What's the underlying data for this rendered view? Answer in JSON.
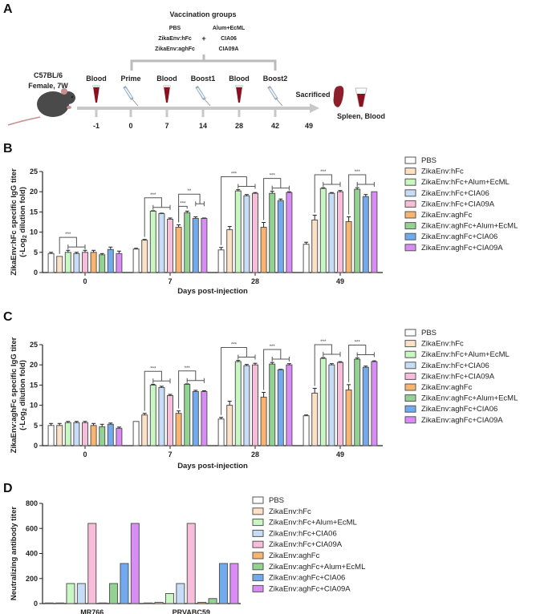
{
  "panels": {
    "a": "A",
    "b": "B",
    "c": "C",
    "d": "D"
  },
  "timeline": {
    "vaccination_title": "Vaccination groups",
    "antigens": [
      "PBS",
      "ZikaEnv:hFc",
      "ZikaEnv:aghFc"
    ],
    "plus": "+",
    "adjuvants": [
      "Alum+EcML",
      "CIA06",
      "CIA09A"
    ],
    "mouse_line1": "C57BL/6",
    "mouse_line2": "Female, 7W",
    "events": [
      {
        "label": "Blood",
        "day": "-1",
        "icon": "blood-tube-icon"
      },
      {
        "label": "Prime",
        "day": "0",
        "icon": "syringe-icon"
      },
      {
        "label": "Blood",
        "day": "7",
        "icon": "blood-tube-icon"
      },
      {
        "label": "Boost1",
        "day": "14",
        "icon": "syringe-icon"
      },
      {
        "label": "Blood",
        "day": "28",
        "icon": "blood-tube-icon"
      },
      {
        "label": "Boost2",
        "day": "42",
        "icon": "syringe-icon"
      },
      {
        "label": "Sacrificed",
        "day": "49",
        "icon": "none"
      }
    ],
    "endpoint": "Spleen, Blood"
  },
  "legend": [
    {
      "name": "PBS",
      "color": "#ffffff"
    },
    {
      "name": "ZikaEnv:hFc",
      "color": "#fde1c6"
    },
    {
      "name": "ZikaEnv:hFc+Alum+EcML",
      "color": "#c9f7c4"
    },
    {
      "name": "ZikaEnv:hFc+CIA06",
      "color": "#c7dcf6"
    },
    {
      "name": "ZikaEnv:hFc+CIA09A",
      "color": "#f9bddc"
    },
    {
      "name": "ZikaEnv:aghFc",
      "color": "#f9b46f"
    },
    {
      "name": "ZikaEnv:aghFc+Alum+EcML",
      "color": "#93d293"
    },
    {
      "name": "ZikaEnv:aghFc+CIA06",
      "color": "#72aaef"
    },
    {
      "name": "ZikaEnv:aghFc+CIA09A",
      "color": "#d98bf6"
    }
  ],
  "chart_data": [
    {
      "id": "B",
      "type": "bar",
      "ylabel_line1": "ZikaEnv:hFc specific IgG titer",
      "ylabel_line2_pre": "(-Log",
      "ylabel_line2_sub": "2",
      "ylabel_line2_post": " dilution fold)",
      "xlabel": "Days post-injection",
      "ylim": [
        0,
        25
      ],
      "yticks": [
        "0",
        "5",
        "10",
        "15",
        "20",
        "25"
      ],
      "categories": [
        "0",
        "7",
        "28",
        "49"
      ],
      "values": [
        [
          4.7,
          4.0,
          5.0,
          4.7,
          5.0,
          5.0,
          4.4,
          5.7,
          4.7
        ],
        [
          5.8,
          8.0,
          15.2,
          14.6,
          13.2,
          11.2,
          14.8,
          13.4,
          13.4
        ],
        [
          5.6,
          10.6,
          20.2,
          19.0,
          19.6,
          11.2,
          19.6,
          17.8,
          19.8
        ],
        [
          7.0,
          13.0,
          20.8,
          19.6,
          20.0,
          12.6,
          20.6,
          18.8,
          20.0
        ]
      ],
      "errors": [
        [
          0.3,
          0.0,
          0.5,
          0.3,
          0.5,
          0.5,
          0.3,
          0.6,
          0.6
        ],
        [
          0.2,
          0.2,
          0.1,
          0.1,
          0.3,
          0.6,
          0.4,
          0.4,
          0.1
        ],
        [
          0.6,
          0.8,
          0.3,
          0.3,
          0.2,
          1.2,
          0.5,
          0.4,
          0.2
        ],
        [
          0.5,
          1.2,
          0.2,
          0.2,
          0.3,
          1.2,
          0.4,
          0.5,
          0.0
        ]
      ],
      "significance": [
        {
          "group": 0,
          "from": 1,
          "to": [
            2,
            4
          ],
          "label": "***"
        },
        {
          "group": 1,
          "from": 1,
          "to": [
            2,
            4
          ],
          "label": "***"
        },
        {
          "group": 1,
          "from": 5,
          "to": [
            7,
            8
          ],
          "label": "**"
        },
        {
          "group": 1,
          "from": 5,
          "to": [
            6,
            6
          ],
          "label": "***"
        },
        {
          "group": 2,
          "from": 0,
          "to": [
            2,
            4
          ],
          "label": "***"
        },
        {
          "group": 2,
          "from": 5,
          "to": [
            6,
            8
          ],
          "label": "***"
        },
        {
          "group": 3,
          "from": 1,
          "to": [
            2,
            4
          ],
          "label": "***"
        },
        {
          "group": 3,
          "from": 5,
          "to": [
            6,
            8
          ],
          "label": "***"
        }
      ]
    },
    {
      "id": "C",
      "type": "bar",
      "ylabel_line1": "ZikaEnv:aghFc specific IgG titer",
      "ylabel_line2_pre": "(-Log",
      "ylabel_line2_sub": "2",
      "ylabel_line2_post": " dilution fold)",
      "xlabel": "Days post-injection",
      "ylim": [
        0,
        25
      ],
      "yticks": [
        "0",
        "5",
        "10",
        "15",
        "20",
        "25"
      ],
      "categories": [
        "0",
        "7",
        "28",
        "49"
      ],
      "values": [
        [
          5.0,
          5.0,
          5.7,
          5.7,
          5.7,
          5.0,
          4.7,
          5.3,
          4.3
        ],
        [
          6.0,
          7.6,
          15.0,
          14.4,
          12.4,
          8.0,
          15.2,
          13.4,
          13.4
        ],
        [
          6.6,
          10.0,
          20.8,
          19.8,
          20.0,
          12.0,
          20.2,
          18.8,
          20.0
        ],
        [
          7.4,
          13.0,
          21.6,
          20.0,
          20.6,
          13.8,
          21.4,
          19.4,
          20.8
        ]
      ],
      "errors": [
        [
          0.5,
          0.5,
          0.3,
          0.3,
          0.3,
          0.5,
          0.6,
          0.3,
          0.3
        ],
        [
          0.0,
          0.4,
          0.2,
          0.3,
          0.3,
          0.6,
          0.1,
          0.3,
          0.2
        ],
        [
          0.4,
          1.0,
          0.3,
          0.3,
          0.4,
          1.2,
          0.4,
          0.1,
          0.3
        ],
        [
          0.2,
          1.2,
          0.2,
          0.3,
          0.2,
          1.3,
          0.3,
          0.3,
          0.2
        ]
      ],
      "significance": [
        {
          "group": 1,
          "from": 1,
          "to": [
            2,
            4
          ],
          "label": "***"
        },
        {
          "group": 1,
          "from": 5,
          "to": [
            6,
            8
          ],
          "label": "***"
        },
        {
          "group": 2,
          "from": 0,
          "to": [
            2,
            4
          ],
          "label": "***"
        },
        {
          "group": 2,
          "from": 5,
          "to": [
            6,
            8
          ],
          "label": "***"
        },
        {
          "group": 3,
          "from": 1,
          "to": [
            2,
            4
          ],
          "label": "***"
        },
        {
          "group": 3,
          "from": 5,
          "to": [
            6,
            8
          ],
          "label": "***"
        }
      ]
    },
    {
      "id": "D",
      "type": "bar",
      "ylabel_line1": "Neutralizing antibody titer",
      "xlabel": "",
      "ylim": [
        0,
        800
      ],
      "yticks": [
        "0",
        "200",
        "400",
        "600",
        "800"
      ],
      "categories": [
        "MR766",
        "PRVABC59"
      ],
      "values": [
        [
          5,
          5,
          160,
          160,
          640,
          5,
          160,
          320,
          640
        ],
        [
          5,
          10,
          80,
          160,
          640,
          10,
          40,
          320,
          320
        ]
      ],
      "significance": []
    }
  ]
}
